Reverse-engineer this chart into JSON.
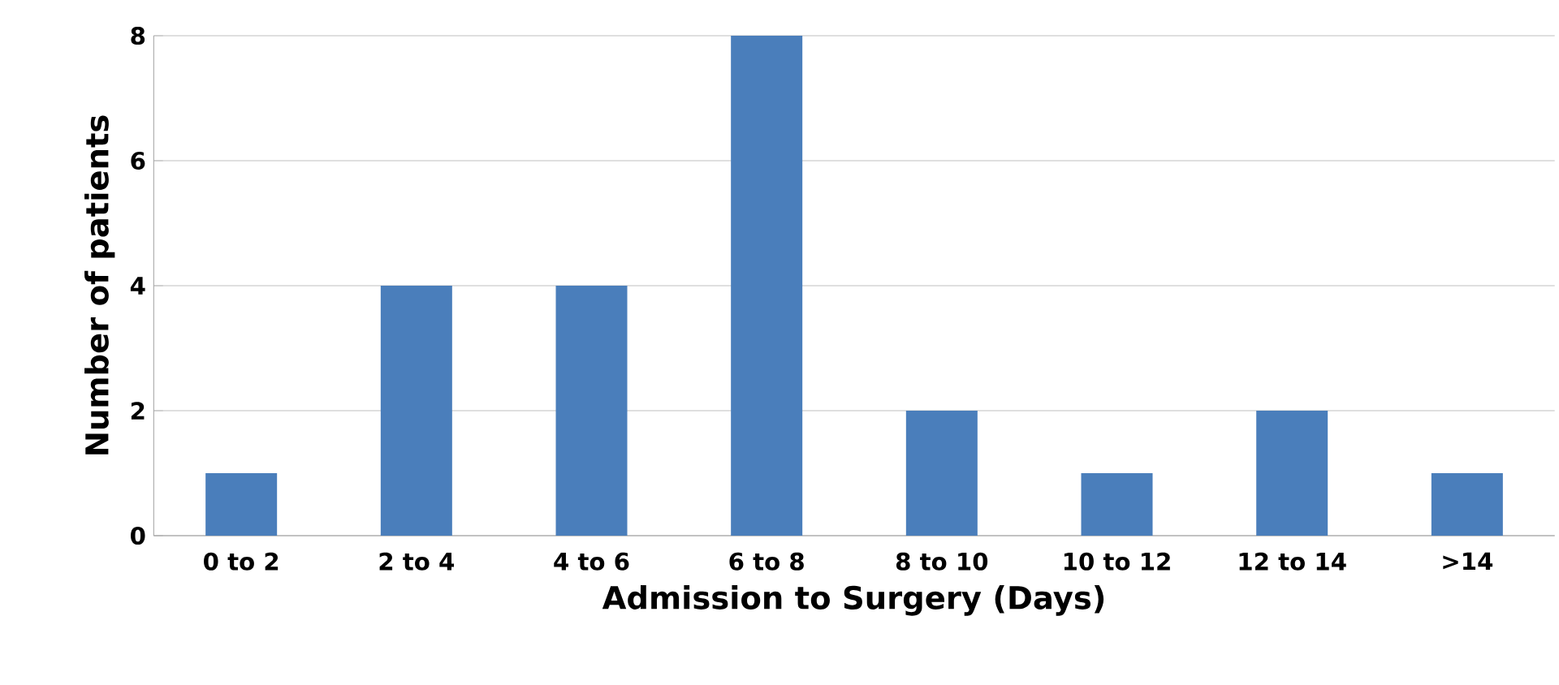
{
  "chart_data": {
    "type": "bar",
    "xlabel": "Admission to Surgery (Days)",
    "ylabel": "Number of patients",
    "categories": [
      "0 to 2",
      "2 to 4",
      "4 to 6",
      "6 to 8",
      "8 to 10",
      "10 to 12",
      "12 to 14",
      ">14"
    ],
    "values": [
      1,
      4,
      4,
      8,
      2,
      1,
      2,
      1
    ],
    "color": "#4a7ebb",
    "ylim": [
      0,
      8
    ],
    "yticks": [
      0,
      2,
      4,
      6,
      8
    ],
    "grid": "y"
  }
}
